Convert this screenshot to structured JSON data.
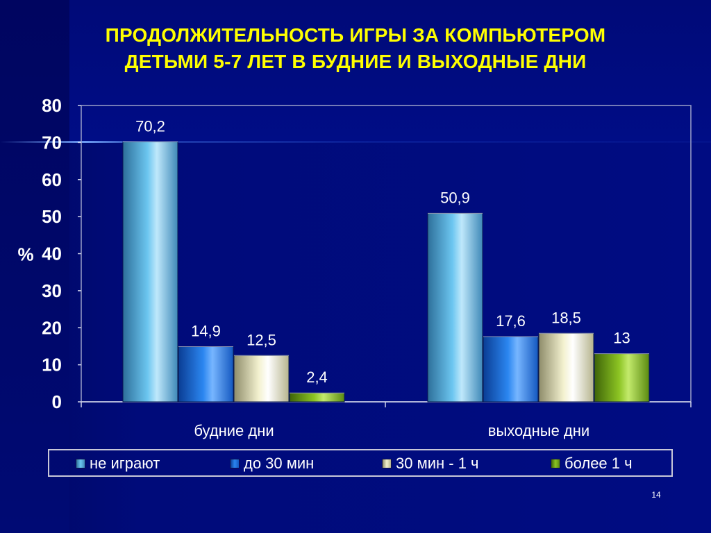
{
  "title_lines": [
    "ПРОДОЛЖИТЕЛЬНОСТЬ ИГРЫ ЗА КОМПЬЮТЕРОМ",
    "ДЕТЬМИ 5-7 ЛЕТ В БУДНИЕ И ВЫХОДНЫЕ ДНИ"
  ],
  "page_number": "14",
  "colors": {
    "title": "#ffff00",
    "text": "#ffffff",
    "background": "#000c82"
  },
  "chart_data": {
    "type": "bar",
    "ylabel": "%",
    "ylim": [
      0,
      80
    ],
    "yticks": [
      0,
      10,
      20,
      30,
      40,
      50,
      60,
      70,
      80
    ],
    "grid": false,
    "legend_position": "bottom",
    "categories": [
      "будние дни",
      "выходные дни"
    ],
    "series": [
      {
        "name": "не играют",
        "values": [
          70.2,
          50.9
        ],
        "labels": [
          "70,2",
          "50,9"
        ],
        "color": "#5ab7e6"
      },
      {
        "name": "до 30 мин",
        "values": [
          14.9,
          17.6
        ],
        "labels": [
          "14,9",
          "17,6"
        ],
        "color": "#1a6fe0"
      },
      {
        "name": "30 мин - 1 ч",
        "values": [
          12.5,
          18.5
        ],
        "labels": [
          "12,5",
          "18,5"
        ],
        "color": "#e8e6bc"
      },
      {
        "name": "более 1 ч",
        "values": [
          2.4,
          13
        ],
        "labels": [
          "2,4",
          "13"
        ],
        "color": "#7ab01c"
      }
    ]
  }
}
